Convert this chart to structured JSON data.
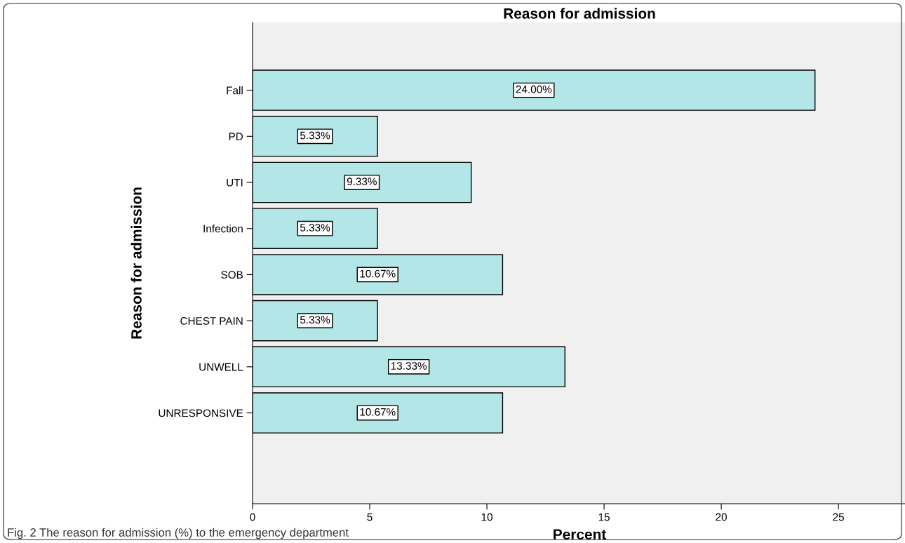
{
  "chart_data": {
    "type": "bar",
    "orientation": "horizontal",
    "title": "Reason for admission",
    "xlabel": "Percent",
    "ylabel": "Reason for admission",
    "categories": [
      "Fall",
      "PD",
      "UTI",
      "Infection",
      "SOB",
      "CHEST PAIN",
      "UNWELL",
      "UNRESPONSIVE"
    ],
    "values": [
      24.0,
      5.33,
      9.33,
      5.33,
      10.67,
      5.33,
      13.33,
      10.67
    ],
    "value_labels": [
      "24.00%",
      "5.33%",
      "9.33%",
      "5.33%",
      "10.67%",
      "5.33%",
      "13.33%",
      "10.67%"
    ],
    "color": "#b3e6e7",
    "xlim": [
      0,
      27.9
    ],
    "xticks": [
      0,
      5,
      10,
      15,
      20,
      25
    ],
    "grid": false,
    "legend": false,
    "annotations": [
      "Fig. 2 The reason for admission (%) to the emergency department"
    ]
  }
}
